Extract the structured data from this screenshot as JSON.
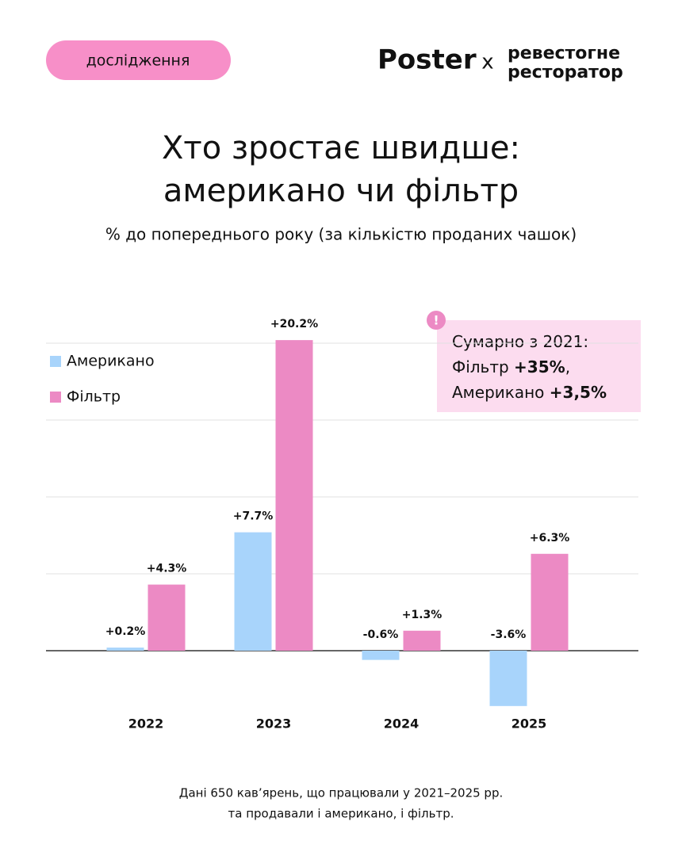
{
  "header": {
    "badge": "дослідження",
    "logo_left": "Poster",
    "logo_sep": "x",
    "logo_right": [
      "ревестогне",
      "ресторатор"
    ]
  },
  "chart_data": {
    "type": "bar",
    "title": "Хто зростає швидше: американо чи фільтр",
    "subtitle": "% до попереднього року (за кількістю проданих чашок)",
    "categories": [
      "2022",
      "2023",
      "2024",
      "2025"
    ],
    "series": [
      {
        "name": "Американо",
        "color": "#a8d4fb",
        "values": [
          0.2,
          7.7,
          -0.6,
          -3.6
        ],
        "value_labels": [
          "+0.2%",
          "+7.7%",
          "-0.6%",
          "-3.6%"
        ]
      },
      {
        "name": "Фільтр",
        "color": "#ec8ac4",
        "values": [
          4.3,
          20.2,
          1.3,
          6.3
        ],
        "value_labels": [
          "+4.3%",
          "+20.2%",
          "+1.3%",
          "+6.3%"
        ]
      }
    ],
    "ylim": [
      -4,
      20.5
    ],
    "yticks": [
      0,
      5,
      10,
      15,
      20
    ],
    "grid": true,
    "legend": "upper-left"
  },
  "callout": {
    "icon": "!",
    "lines": [
      [
        "Сумарно з 2021:"
      ],
      [
        "Фільтр ",
        "+35%",
        ","
      ],
      [
        "Американо ",
        "+3,5%"
      ]
    ]
  },
  "footer": [
    "Дані 650 кав’ярень, що працювали у 2021–2025 рр.",
    "та продавали і американо, і фільтр."
  ]
}
